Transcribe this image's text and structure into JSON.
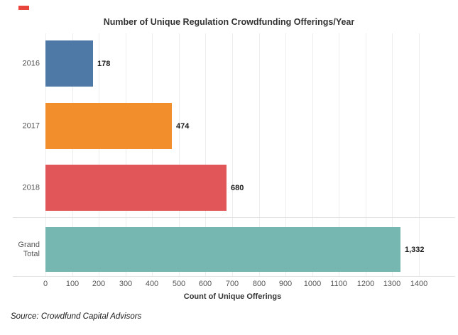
{
  "chart_data": {
    "type": "bar",
    "orientation": "horizontal",
    "title": "Number of Unique Regulation Crowdfunding Offerings/Year",
    "categories": [
      "2016",
      "2017",
      "2018",
      "Grand Total"
    ],
    "values": [
      178,
      474,
      680,
      1332
    ],
    "value_labels": [
      "178",
      "474",
      "680",
      "1,332"
    ],
    "bar_colors": [
      "#4e79a7",
      "#f28e2b",
      "#e15759",
      "#76b7b2"
    ],
    "xlabel": "Count of Unique Offerings",
    "xlim": [
      0,
      1400
    ],
    "x_ticks": [
      0,
      100,
      200,
      300,
      400,
      500,
      600,
      700,
      800,
      900,
      1000,
      1100,
      1200,
      1300,
      1400
    ],
    "x_tick_labels": [
      "0",
      "100",
      "200",
      "300",
      "400",
      "500",
      "600",
      "700",
      "800",
      "900",
      "1000",
      "1100",
      "1200",
      "1300",
      "1400"
    ],
    "grid": true,
    "legend": "none",
    "separator_after_index": 2
  },
  "source_note": "Source: Crowdfund Capital Advisors",
  "decoration": {
    "red_mark_color": "#e8463c"
  },
  "style_colors": {
    "title_text": "#333333",
    "axis_text": "#555555",
    "gridline": "#ededed",
    "separator_line": "#e3e3e3"
  }
}
